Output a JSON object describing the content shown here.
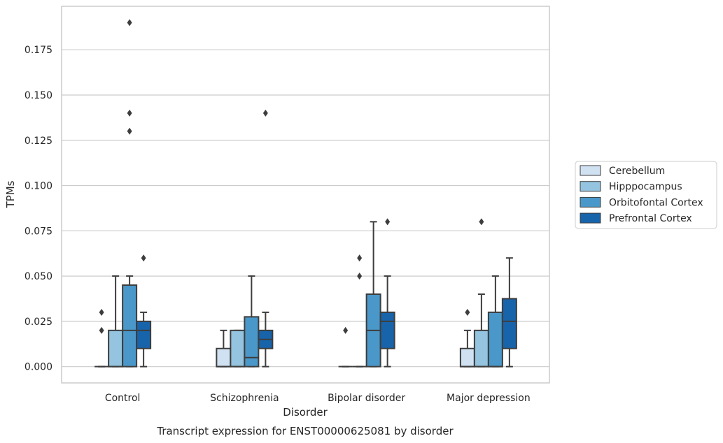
{
  "chart_data": {
    "type": "box",
    "title": "",
    "xlabel": "Disorder",
    "ylabel": "TPMs",
    "caption": "Transcript expression for ENST00000625081 by disorder",
    "ylim": [
      -0.009,
      0.199
    ],
    "yticks": [
      "0.000",
      "0.025",
      "0.050",
      "0.075",
      "0.100",
      "0.125",
      "0.150",
      "0.175"
    ],
    "ytick_values": [
      0,
      0.025,
      0.05,
      0.075,
      0.1,
      0.125,
      0.15,
      0.175
    ],
    "grid": "horizontal",
    "legend_placement": "right",
    "categories": [
      "Control",
      "Schizophrenia",
      "Bipolar disorder",
      "Major depression"
    ],
    "series": [
      {
        "name": "Cerebellum",
        "color": "#d0e1f2",
        "boxes": [
          {
            "q1": 0,
            "median": 0,
            "q3": 0,
            "whisker_low": 0,
            "whisker_high": 0,
            "outliers": [
              0.02,
              0.03
            ]
          },
          {
            "q1": 0,
            "median": 0,
            "q3": 0.01,
            "whisker_low": 0,
            "whisker_high": 0.02,
            "outliers": []
          },
          {
            "q1": 0,
            "median": 0,
            "q3": 0,
            "whisker_low": 0,
            "whisker_high": 0,
            "outliers": [
              0.02
            ]
          },
          {
            "q1": 0,
            "median": 0,
            "q3": 0.01,
            "whisker_low": 0,
            "whisker_high": 0.02,
            "outliers": [
              0.03
            ]
          }
        ]
      },
      {
        "name": "Hipppocampus",
        "color": "#94c4df",
        "boxes": [
          {
            "q1": 0,
            "median": 0,
            "q3": 0.02,
            "whisker_low": 0,
            "whisker_high": 0.05,
            "outliers": []
          },
          {
            "q1": 0,
            "median": 0,
            "q3": 0.02,
            "whisker_low": 0,
            "whisker_high": 0.02,
            "outliers": []
          },
          {
            "q1": 0,
            "median": 0,
            "q3": 0,
            "whisker_low": 0,
            "whisker_high": 0,
            "outliers": [
              0.05,
              0.06
            ]
          },
          {
            "q1": 0,
            "median": 0,
            "q3": 0.02,
            "whisker_low": 0,
            "whisker_high": 0.04,
            "outliers": [
              0.08
            ]
          }
        ]
      },
      {
        "name": "Orbitofontal Cortex",
        "color": "#4a98c9",
        "boxes": [
          {
            "q1": 0,
            "median": 0.02,
            "q3": 0.045,
            "whisker_low": 0,
            "whisker_high": 0.05,
            "outliers": [
              0.13,
              0.14,
              0.19
            ]
          },
          {
            "q1": 0,
            "median": 0.005,
            "q3": 0.0275,
            "whisker_low": 0,
            "whisker_high": 0.05,
            "outliers": []
          },
          {
            "q1": 0,
            "median": 0.02,
            "q3": 0.04,
            "whisker_low": 0,
            "whisker_high": 0.08,
            "outliers": []
          },
          {
            "q1": 0,
            "median": 0,
            "q3": 0.03,
            "whisker_low": 0,
            "whisker_high": 0.05,
            "outliers": []
          }
        ]
      },
      {
        "name": "Prefrontal Cortex",
        "color": "#1764ab",
        "boxes": [
          {
            "q1": 0.01,
            "median": 0.02,
            "q3": 0.025,
            "whisker_low": 0,
            "whisker_high": 0.03,
            "outliers": [
              0.06
            ]
          },
          {
            "q1": 0.01,
            "median": 0.015,
            "q3": 0.02,
            "whisker_low": 0,
            "whisker_high": 0.03,
            "outliers": [
              0.14
            ]
          },
          {
            "q1": 0.01,
            "median": 0.025,
            "q3": 0.03,
            "whisker_low": 0,
            "whisker_high": 0.05,
            "outliers": [
              0.08
            ]
          },
          {
            "q1": 0.01,
            "median": 0.025,
            "q3": 0.0375,
            "whisker_low": 0,
            "whisker_high": 0.06,
            "outliers": []
          }
        ]
      }
    ]
  }
}
